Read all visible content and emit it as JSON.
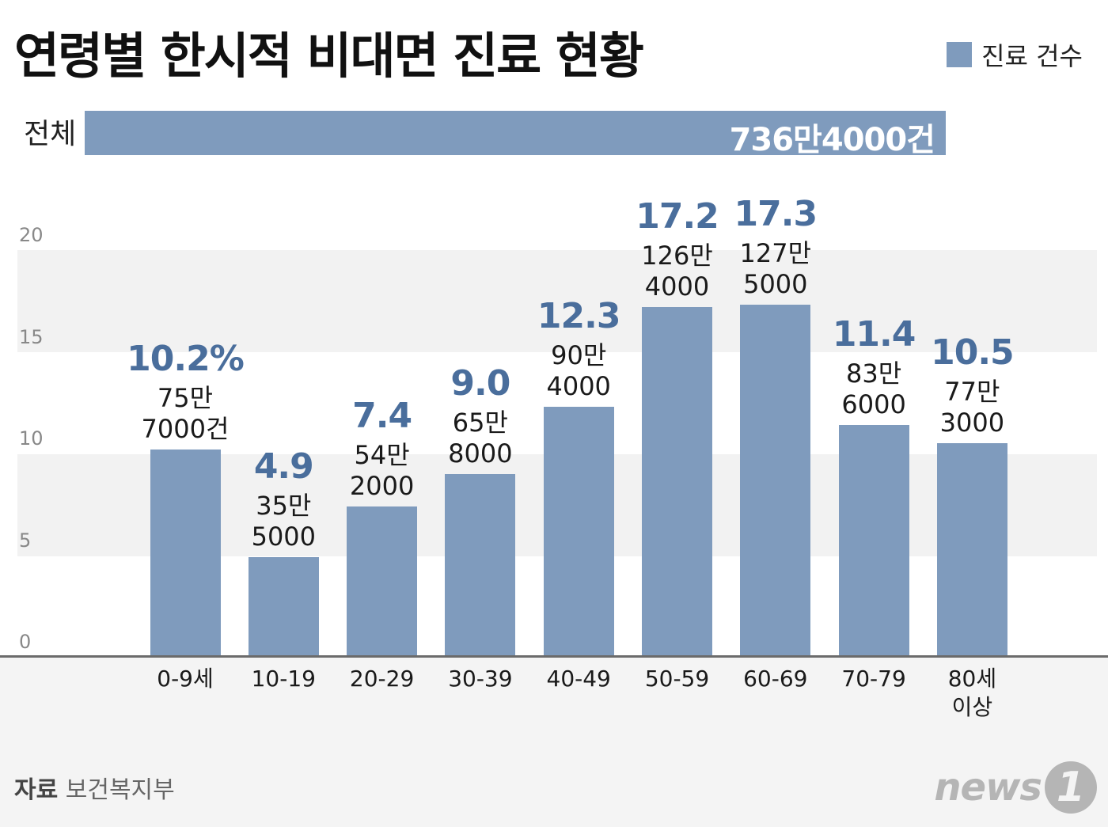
{
  "title": "연령별 한시적 비대면 진료 현황",
  "legend": {
    "label": "진료 건수",
    "color": "#7f9bbd"
  },
  "total": {
    "label": "전체",
    "value": "736만4000건"
  },
  "source": {
    "prefix": "자료",
    "name": "보건복지부"
  },
  "logo": {
    "text": "news",
    "mark": "1"
  },
  "chart_data": {
    "type": "bar",
    "ylim": [
      0,
      20
    ],
    "yticks": [
      "0",
      "5",
      "10",
      "15",
      "20"
    ],
    "categories": [
      "0-9세",
      "10-19",
      "20-29",
      "30-39",
      "40-49",
      "50-59",
      "60-69",
      "70-79",
      "80세 이상"
    ],
    "values": [
      10.2,
      4.9,
      7.4,
      9.0,
      12.3,
      17.2,
      17.3,
      11.4,
      10.5
    ],
    "value_labels": [
      "10.2%",
      "4.9",
      "7.4",
      "9.0",
      "12.3",
      "17.2",
      "17.3",
      "11.4",
      "10.5"
    ],
    "count_labels": [
      [
        "75만",
        "7000건"
      ],
      [
        "35만",
        "5000"
      ],
      [
        "54만",
        "2000"
      ],
      [
        "65만",
        "8000"
      ],
      [
        "90만",
        "4000"
      ],
      [
        "126만",
        "4000"
      ],
      [
        "127만",
        "5000"
      ],
      [
        "83만",
        "6000"
      ],
      [
        "77만",
        "3000"
      ]
    ],
    "category_lines": [
      [
        "0-9세"
      ],
      [
        "10-19"
      ],
      [
        "20-29"
      ],
      [
        "30-39"
      ],
      [
        "40-49"
      ],
      [
        "50-59"
      ],
      [
        "60-69"
      ],
      [
        "70-79"
      ],
      [
        "80세",
        "이상"
      ]
    ],
    "grid": true
  }
}
